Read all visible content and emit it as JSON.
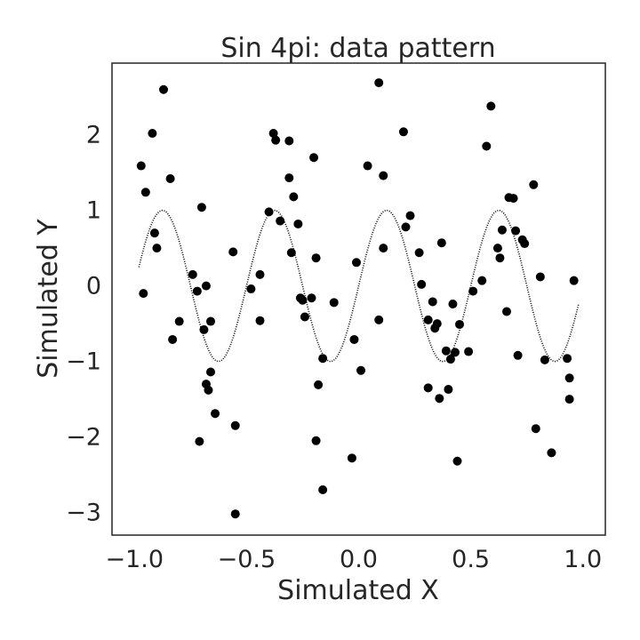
{
  "chart_data": {
    "type": "scatter",
    "title": "Sin 4pi: data pattern",
    "xlabel": "Simulated X",
    "ylabel": "Simulated Y",
    "xlim": [
      -1.1,
      1.1
    ],
    "ylim": [
      -3.3,
      2.95
    ],
    "xticks": [
      -1.0,
      -0.5,
      0.0,
      0.5,
      1.0
    ],
    "xtick_labels": [
      "−1.0",
      "−0.5",
      "0.0",
      "0.5",
      "1.0"
    ],
    "yticks": [
      -3,
      -2,
      -1,
      0,
      1,
      2
    ],
    "ytick_labels": [
      "−3",
      "−2",
      "−1",
      "0",
      "1",
      "2"
    ],
    "grid": false,
    "colors": {
      "points": "#000000",
      "curve": "#000000",
      "frame": "#262626"
    },
    "curve": {
      "description_formula": "y = sin(4*pi*x)",
      "x_range": [
        -0.98,
        0.98
      ]
    },
    "points": [
      [
        -0.97,
        1.59
      ],
      [
        -0.96,
        -0.1
      ],
      [
        -0.95,
        1.24
      ],
      [
        -0.92,
        2.02
      ],
      [
        -0.91,
        0.7
      ],
      [
        -0.9,
        0.5
      ],
      [
        -0.87,
        2.6
      ],
      [
        -0.84,
        1.42
      ],
      [
        -0.83,
        -0.71
      ],
      [
        -0.8,
        -0.47
      ],
      [
        -0.74,
        0.15
      ],
      [
        -0.72,
        -0.07
      ],
      [
        -0.71,
        -2.06
      ],
      [
        -0.7,
        1.04
      ],
      [
        -0.69,
        -0.58
      ],
      [
        -0.68,
        0.0
      ],
      [
        -0.68,
        -1.3
      ],
      [
        -0.67,
        -1.38
      ],
      [
        -0.66,
        -1.14
      ],
      [
        -0.66,
        -0.47
      ],
      [
        -0.64,
        -1.69
      ],
      [
        -0.56,
        0.45
      ],
      [
        -0.55,
        -1.85
      ],
      [
        -0.55,
        -3.02
      ],
      [
        -0.48,
        -0.04
      ],
      [
        -0.44,
        -0.46
      ],
      [
        -0.44,
        0.15
      ],
      [
        -0.4,
        0.98
      ],
      [
        -0.38,
        2.02
      ],
      [
        -0.37,
        1.93
      ],
      [
        -0.35,
        0.86
      ],
      [
        -0.31,
        1.92
      ],
      [
        -0.31,
        1.43
      ],
      [
        -0.3,
        0.44
      ],
      [
        -0.29,
        1.18
      ],
      [
        -0.27,
        0.82
      ],
      [
        -0.26,
        -0.16
      ],
      [
        -0.25,
        -0.19
      ],
      [
        -0.24,
        -0.41
      ],
      [
        -0.21,
        -0.16
      ],
      [
        -0.2,
        1.7
      ],
      [
        -0.19,
        0.37
      ],
      [
        -0.19,
        -2.05
      ],
      [
        -0.18,
        -1.31
      ],
      [
        -0.16,
        -0.96
      ],
      [
        -0.16,
        -2.7
      ],
      [
        -0.11,
        -0.22
      ],
      [
        -0.03,
        -2.28
      ],
      [
        -0.02,
        -0.71
      ],
      [
        -0.01,
        0.31
      ],
      [
        0.01,
        -1.12
      ],
      [
        0.04,
        1.59
      ],
      [
        0.09,
        2.69
      ],
      [
        0.09,
        -0.45
      ],
      [
        0.11,
        0.5
      ],
      [
        0.11,
        1.46
      ],
      [
        0.2,
        2.04
      ],
      [
        0.21,
        0.78
      ],
      [
        0.23,
        0.93
      ],
      [
        0.27,
        0.44
      ],
      [
        0.28,
        0.02
      ],
      [
        0.31,
        -0.45
      ],
      [
        0.31,
        -1.35
      ],
      [
        0.33,
        -0.21
      ],
      [
        0.34,
        -0.56
      ],
      [
        0.35,
        -0.5
      ],
      [
        0.36,
        -1.49
      ],
      [
        0.37,
        0.57
      ],
      [
        0.39,
        -0.86
      ],
      [
        0.4,
        -1.37
      ],
      [
        0.41,
        -0.97
      ],
      [
        0.42,
        -0.24
      ],
      [
        0.43,
        -0.88
      ],
      [
        0.44,
        -2.32
      ],
      [
        0.45,
        -0.51
      ],
      [
        0.49,
        -0.87
      ],
      [
        0.51,
        -0.07
      ],
      [
        0.55,
        0.07
      ],
      [
        0.57,
        1.85
      ],
      [
        0.59,
        2.38
      ],
      [
        0.62,
        0.5
      ],
      [
        0.63,
        0.37
      ],
      [
        0.64,
        0.74
      ],
      [
        0.66,
        -0.34
      ],
      [
        0.67,
        1.17
      ],
      [
        0.69,
        1.16
      ],
      [
        0.7,
        0.73
      ],
      [
        0.71,
        -0.92
      ],
      [
        0.73,
        0.61
      ],
      [
        0.74,
        0.56
      ],
      [
        0.78,
        1.34
      ],
      [
        0.79,
        -1.89
      ],
      [
        0.81,
        0.12
      ],
      [
        0.83,
        -0.98
      ],
      [
        0.86,
        -2.21
      ],
      [
        0.93,
        -0.96
      ],
      [
        0.94,
        -1.22
      ],
      [
        0.94,
        -1.5
      ],
      [
        0.96,
        0.07
      ]
    ]
  }
}
